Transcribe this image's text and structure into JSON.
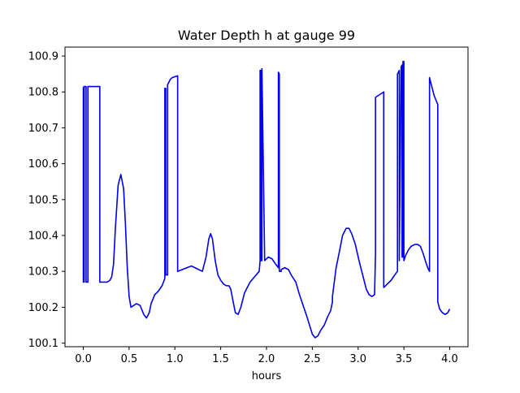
{
  "chart_data": {
    "type": "line",
    "title": "Water Depth h at gauge 99",
    "xlabel": "hours",
    "ylabel": "",
    "xlim": [
      -0.2,
      4.2
    ],
    "ylim": [
      100.09,
      100.925
    ],
    "grid": false,
    "legend": "none",
    "x_ticks": [
      0.0,
      0.5,
      1.0,
      1.5,
      2.0,
      2.5,
      3.0,
      3.5,
      4.0
    ],
    "x_tick_labels": [
      "0.0",
      "0.5",
      "1.0",
      "1.5",
      "2.0",
      "2.5",
      "3.0",
      "3.5",
      "4.0"
    ],
    "y_ticks": [
      100.1,
      100.2,
      100.3,
      100.4,
      100.5,
      100.6,
      100.7,
      100.8,
      100.9
    ],
    "y_tick_labels": [
      "100.1",
      "100.2",
      "100.3",
      "100.4",
      "100.5",
      "100.6",
      "100.7",
      "100.8",
      "100.9"
    ],
    "series": [
      {
        "color": "#0000ee",
        "x": [
          0.0,
          0.0,
          0.01,
          0.01,
          0.03,
          0.03,
          0.05,
          0.05,
          0.07,
          0.07,
          0.18,
          0.18,
          0.26,
          0.29,
          0.31,
          0.33,
          0.35,
          0.38,
          0.41,
          0.44,
          0.46,
          0.48,
          0.5,
          0.52,
          0.55,
          0.58,
          0.62,
          0.66,
          0.69,
          0.72,
          0.74,
          0.78,
          0.82,
          0.86,
          0.89,
          0.89,
          0.9,
          0.9,
          0.92,
          0.92,
          0.95,
          0.97,
          1.03,
          1.03,
          1.08,
          1.13,
          1.18,
          1.22,
          1.26,
          1.3,
          1.34,
          1.37,
          1.39,
          1.41,
          1.44,
          1.47,
          1.5,
          1.53,
          1.56,
          1.59,
          1.61,
          1.64,
          1.66,
          1.69,
          1.72,
          1.76,
          1.82,
          1.87,
          1.92,
          1.93,
          1.93,
          1.94,
          1.94,
          1.95,
          1.95,
          1.98,
          2.02,
          2.06,
          2.1,
          2.13,
          2.13,
          2.14,
          2.14,
          2.16,
          2.16,
          2.2,
          2.24,
          2.27,
          2.32,
          2.36,
          2.4,
          2.44,
          2.47,
          2.5,
          2.53,
          2.56,
          2.59,
          2.63,
          2.67,
          2.7,
          2.72,
          2.72,
          2.74,
          2.76,
          2.8,
          2.83,
          2.87,
          2.9,
          2.93,
          2.97,
          3.01,
          3.05,
          3.09,
          3.12,
          3.15,
          3.18,
          3.19,
          3.19,
          3.28,
          3.28,
          3.32,
          3.36,
          3.4,
          3.43,
          3.43,
          3.45,
          3.45,
          3.47,
          3.48,
          3.48,
          3.49,
          3.49,
          3.5,
          3.5,
          3.52,
          3.55,
          3.58,
          3.62,
          3.65,
          3.68,
          3.71,
          3.74,
          3.76,
          3.78,
          3.78,
          3.8,
          3.83,
          3.87,
          3.87,
          3.89,
          3.92,
          3.95,
          3.98,
          4.0
        ],
        "y": [
          100.815,
          100.27,
          100.27,
          100.815,
          100.815,
          100.27,
          100.27,
          100.815,
          100.815,
          100.815,
          100.815,
          100.27,
          100.27,
          100.275,
          100.285,
          100.32,
          100.42,
          100.54,
          100.57,
          100.53,
          100.43,
          100.31,
          100.23,
          100.2,
          100.205,
          100.21,
          100.205,
          100.18,
          100.17,
          100.185,
          100.21,
          100.235,
          100.245,
          100.26,
          100.28,
          100.81,
          100.81,
          100.29,
          100.29,
          100.82,
          100.835,
          100.84,
          100.845,
          100.3,
          100.305,
          100.31,
          100.315,
          100.31,
          100.305,
          100.3,
          100.34,
          100.39,
          100.405,
          100.39,
          100.33,
          100.29,
          100.275,
          100.265,
          100.26,
          100.26,
          100.25,
          100.21,
          100.185,
          100.18,
          100.2,
          100.24,
          100.27,
          100.285,
          100.3,
          100.33,
          100.86,
          100.86,
          100.33,
          100.33,
          100.865,
          100.33,
          100.34,
          100.335,
          100.32,
          100.31,
          100.855,
          100.85,
          100.3,
          100.3,
          100.305,
          100.31,
          100.305,
          100.29,
          100.27,
          100.235,
          100.205,
          100.175,
          100.15,
          100.125,
          100.115,
          100.12,
          100.135,
          100.15,
          100.175,
          100.19,
          100.215,
          100.23,
          100.27,
          100.31,
          100.36,
          100.4,
          100.42,
          100.42,
          100.405,
          100.375,
          100.33,
          100.29,
          100.25,
          100.235,
          100.23,
          100.235,
          100.35,
          100.785,
          100.8,
          100.255,
          100.265,
          100.275,
          100.29,
          100.3,
          100.85,
          100.86,
          100.33,
          100.87,
          100.875,
          100.34,
          100.34,
          100.885,
          100.885,
          100.33,
          100.345,
          100.36,
          100.37,
          100.375,
          100.375,
          100.37,
          100.35,
          100.325,
          100.31,
          100.3,
          100.84,
          100.82,
          100.79,
          100.765,
          100.215,
          100.195,
          100.185,
          100.18,
          100.185,
          100.195
        ]
      }
    ]
  }
}
